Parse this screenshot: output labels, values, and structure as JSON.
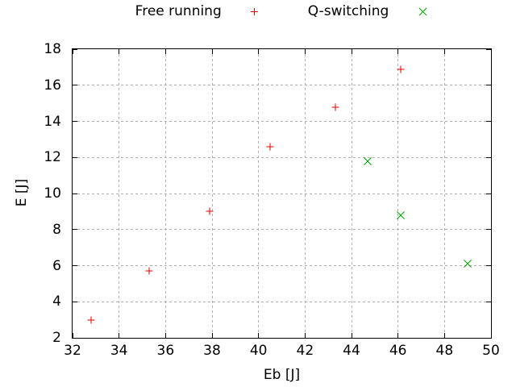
{
  "page": {
    "background": "#ffffff",
    "text_color": "#000000"
  },
  "legend": {
    "items": [
      {
        "label": "Free running",
        "marker": "plus",
        "color": "#e00000"
      },
      {
        "label": "Q-switching",
        "marker": "cross",
        "color": "#00a000"
      }
    ]
  },
  "chart_data": {
    "type": "scatter",
    "title": "",
    "xlabel": "Eb [J]",
    "ylabel": "E [J]",
    "xlim": [
      32,
      50
    ],
    "ylim": [
      2,
      18
    ],
    "xticks": [
      32,
      34,
      36,
      38,
      40,
      42,
      44,
      46,
      48,
      50
    ],
    "yticks": [
      2,
      4,
      6,
      8,
      10,
      12,
      14,
      16,
      18
    ],
    "grid": true,
    "grid_color": "#b0b0b0",
    "legend_position": "above-plot-horizontal",
    "series": [
      {
        "name": "Free running",
        "marker": "plus",
        "color": "#e00000",
        "points": [
          [
            32.8,
            3.0
          ],
          [
            35.3,
            5.7
          ],
          [
            37.9,
            9.0
          ],
          [
            40.5,
            12.6
          ],
          [
            43.3,
            14.8
          ],
          [
            46.1,
            16.9
          ]
        ]
      },
      {
        "name": "Q-switching",
        "marker": "cross",
        "color": "#00a000",
        "points": [
          [
            44.7,
            11.8
          ],
          [
            46.1,
            8.8
          ],
          [
            49.0,
            6.1
          ]
        ]
      }
    ]
  }
}
